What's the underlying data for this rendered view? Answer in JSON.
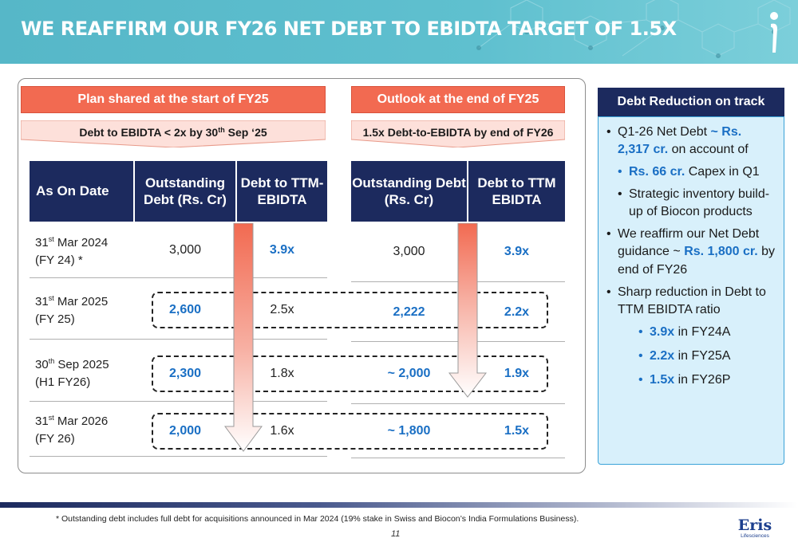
{
  "header": {
    "title": "WE REAFFIRM OUR FY26 NET DEBT TO EBIDTA TARGET OF 1.5X"
  },
  "left_section": {
    "banner": "Plan shared at the start of FY25",
    "subtitle_main": "Debt to EBIDTA < 2x by 30",
    "subtitle_sup": "th",
    "subtitle_end": " Sep ‘25"
  },
  "right_section": {
    "banner": "Outlook at the end of FY25",
    "subtitle": "1.5x Debt-to-EBIDTA by end of FY26"
  },
  "table": {
    "headers": {
      "date": "As On Date",
      "plan_debt": "Outstanding Debt (Rs. Cr)",
      "plan_ratio": "Debt to TTM-EBIDTA",
      "outlook_debt": "Outstanding Debt (Rs. Cr)",
      "outlook_ratio": "Debt to TTM EBIDTA"
    },
    "rows": [
      {
        "day": "31",
        "sup": "st",
        "month": " Mar 2024",
        "fy": "(FY 24) *",
        "plan_debt": "3,000",
        "plan_ratio": "3.9x",
        "outlook_debt": "3,000",
        "outlook_ratio": "3.9x"
      },
      {
        "day": "31",
        "sup": "st",
        "month": " Mar 2025",
        "fy": "(FY 25)",
        "plan_debt": "2,600",
        "plan_ratio": "2.5x",
        "outlook_debt": "2,222",
        "outlook_ratio": "2.2x"
      },
      {
        "day": "30",
        "sup": "th",
        "month": " Sep 2025",
        "fy": "(H1 FY26)",
        "plan_debt": "2,300",
        "plan_ratio": "1.8x",
        "outlook_debt": "~ 2,000",
        "outlook_ratio": "1.9x"
      },
      {
        "day": "31",
        "sup": "st",
        "month": " Mar 2026",
        "fy": "(FY 26)",
        "plan_debt": "2,000",
        "plan_ratio": "1.6x",
        "outlook_debt": "~ 1,800",
        "outlook_ratio": "1.5x"
      }
    ]
  },
  "sidebar": {
    "title": "Debt Reduction on track",
    "b1_text": "Q1-26 Net Debt ",
    "b1_hl": "~ Rs. 2,317 cr.",
    "b1_end": " on account of",
    "b1a_hl": "Rs. 66 cr.",
    "b1a_end": " Capex in Q1",
    "b1b": "Strategic inventory build-up of Biocon products",
    "b2_text": "We reaffirm our Net Debt guidance ~ ",
    "b2_hl": "Rs. 1,800 cr.",
    "b2_end": " by end of FY26",
    "b3": "Sharp reduction in Debt to TTM EBIDTA ratio",
    "r1_hl": "3.9x",
    "r1_end": " in FY24A",
    "r2_hl": "2.2x",
    "r2_end": " in FY25A",
    "r3_hl": "1.5x",
    "r3_end": " in FY26P"
  },
  "footer": {
    "note": "* Outstanding debt includes full debt for acquisitions announced in Mar 2024 (19% stake in Swiss and Biocon’s India Formulations Business).",
    "page": "11",
    "logo_name": "Eris",
    "logo_tag": "Lifesciences"
  },
  "colors": {
    "navy": "#1c2a5e",
    "coral": "#f26a51",
    "accent_blue": "#1a6fc4",
    "teal_header": "#5fc0cf",
    "sidebar_bg": "#d8f0fb"
  }
}
